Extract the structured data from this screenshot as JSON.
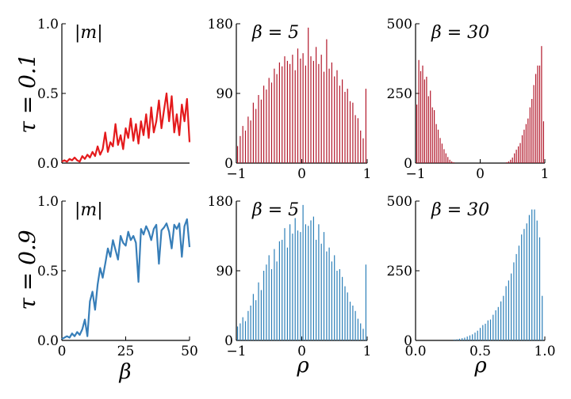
{
  "row_labels": [
    "τ = 0.1",
    "τ = 0.9"
  ],
  "x_labels": [
    "β",
    "ρ",
    "ρ"
  ],
  "chart_data": [
    {
      "id": "p00",
      "type": "line",
      "row": 0,
      "col": 0,
      "annotation": "|m|",
      "color": "#e41a1c",
      "xlim": [
        0,
        50
      ],
      "ylim": [
        0,
        1.0
      ],
      "xticks": [],
      "yticks": [
        0,
        0.5,
        1.0
      ],
      "ytick_labels": [
        "0.0",
        "0.5",
        "1.0"
      ],
      "x": [
        0,
        1,
        2,
        3,
        4,
        5,
        6,
        7,
        8,
        9,
        10,
        11,
        12,
        13,
        14,
        15,
        16,
        17,
        18,
        19,
        20,
        21,
        22,
        23,
        24,
        25,
        26,
        27,
        28,
        29,
        30,
        31,
        32,
        33,
        34,
        35,
        36,
        37,
        38,
        39,
        40,
        41,
        42,
        43,
        44,
        45,
        46,
        47,
        48,
        49,
        50
      ],
      "y": [
        0.01,
        0.02,
        0.01,
        0.03,
        0.02,
        0.04,
        0.02,
        0.01,
        0.05,
        0.03,
        0.06,
        0.04,
        0.08,
        0.05,
        0.12,
        0.06,
        0.1,
        0.22,
        0.08,
        0.15,
        0.12,
        0.28,
        0.13,
        0.2,
        0.1,
        0.25,
        0.18,
        0.32,
        0.16,
        0.28,
        0.14,
        0.3,
        0.2,
        0.35,
        0.18,
        0.4,
        0.22,
        0.3,
        0.45,
        0.25,
        0.38,
        0.5,
        0.3,
        0.48,
        0.22,
        0.35,
        0.2,
        0.42,
        0.3,
        0.46,
        0.15
      ]
    },
    {
      "id": "p01",
      "type": "bar",
      "row": 0,
      "col": 1,
      "annotation": "β = 5",
      "color": "#b2182b",
      "xlim": [
        -1,
        1
      ],
      "ylim": [
        0,
        180
      ],
      "xticks": [
        -1,
        0,
        1
      ],
      "xtick_labels": [
        "−1",
        "0",
        "1"
      ],
      "yticks": [
        0,
        90,
        180
      ],
      "ytick_labels": [
        "0",
        "90",
        "180"
      ],
      "x": [
        -0.98,
        -0.94,
        -0.9,
        -0.86,
        -0.82,
        -0.78,
        -0.74,
        -0.7,
        -0.66,
        -0.62,
        -0.58,
        -0.54,
        -0.5,
        -0.46,
        -0.42,
        -0.38,
        -0.34,
        -0.3,
        -0.26,
        -0.22,
        -0.18,
        -0.14,
        -0.1,
        -0.06,
        -0.02,
        0.02,
        0.06,
        0.1,
        0.14,
        0.18,
        0.22,
        0.26,
        0.3,
        0.34,
        0.38,
        0.42,
        0.46,
        0.5,
        0.54,
        0.58,
        0.62,
        0.66,
        0.7,
        0.74,
        0.78,
        0.82,
        0.86,
        0.9,
        0.94,
        0.98
      ],
      "y": [
        22,
        35,
        48,
        42,
        60,
        55,
        78,
        70,
        88,
        82,
        100,
        95,
        110,
        104,
        122,
        115,
        130,
        125,
        138,
        132,
        128,
        140,
        120,
        148,
        135,
        142,
        126,
        175,
        138,
        132,
        150,
        128,
        140,
        118,
        160,
        122,
        130,
        112,
        120,
        100,
        108,
        92,
        96,
        80,
        78,
        62,
        58,
        42,
        32,
        96
      ]
    },
    {
      "id": "p02",
      "type": "bar",
      "row": 0,
      "col": 2,
      "annotation": "β = 30",
      "color": "#b2182b",
      "xlim": [
        -1,
        1
      ],
      "ylim": [
        0,
        500
      ],
      "xticks": [
        -1,
        0,
        1
      ],
      "xtick_labels": [
        "−1",
        "0",
        "1"
      ],
      "yticks": [
        0,
        250,
        500
      ],
      "ytick_labels": [
        "0",
        "250",
        "500"
      ],
      "x": [
        -0.98,
        -0.95,
        -0.92,
        -0.89,
        -0.86,
        -0.83,
        -0.8,
        -0.77,
        -0.74,
        -0.71,
        -0.68,
        -0.65,
        -0.62,
        -0.59,
        -0.56,
        -0.53,
        -0.5,
        -0.47,
        -0.44,
        -0.41,
        0.41,
        0.44,
        0.47,
        0.5,
        0.53,
        0.56,
        0.59,
        0.62,
        0.65,
        0.68,
        0.71,
        0.74,
        0.77,
        0.8,
        0.83,
        0.86,
        0.89,
        0.92,
        0.95,
        0.98
      ],
      "y": [
        210,
        370,
        330,
        350,
        300,
        310,
        240,
        260,
        200,
        190,
        140,
        120,
        90,
        70,
        50,
        35,
        22,
        12,
        6,
        3,
        3,
        6,
        12,
        20,
        35,
        48,
        60,
        72,
        100,
        120,
        140,
        160,
        200,
        230,
        280,
        320,
        350,
        350,
        420,
        150
      ]
    },
    {
      "id": "p10",
      "type": "line",
      "row": 1,
      "col": 0,
      "annotation": "|m|",
      "color": "#377eb8",
      "xlim": [
        0,
        50
      ],
      "ylim": [
        0,
        1.0
      ],
      "xticks": [
        0,
        25,
        50
      ],
      "xtick_labels": [
        "0",
        "25",
        "50"
      ],
      "yticks": [
        0,
        0.5,
        1.0
      ],
      "ytick_labels": [
        "0.0",
        "0.5",
        "1.0"
      ],
      "x": [
        0,
        1,
        2,
        3,
        4,
        5,
        6,
        7,
        8,
        9,
        10,
        11,
        12,
        13,
        14,
        15,
        16,
        17,
        18,
        19,
        20,
        21,
        22,
        23,
        24,
        25,
        26,
        27,
        28,
        29,
        30,
        31,
        32,
        33,
        34,
        35,
        36,
        37,
        38,
        39,
        40,
        41,
        42,
        43,
        44,
        45,
        46,
        47,
        48,
        49,
        50
      ],
      "y": [
        0.01,
        0.02,
        0.03,
        0.02,
        0.05,
        0.03,
        0.06,
        0.04,
        0.08,
        0.15,
        0.03,
        0.28,
        0.35,
        0.22,
        0.4,
        0.52,
        0.45,
        0.55,
        0.66,
        0.6,
        0.72,
        0.65,
        0.58,
        0.75,
        0.7,
        0.68,
        0.78,
        0.72,
        0.75,
        0.7,
        0.42,
        0.8,
        0.76,
        0.82,
        0.78,
        0.72,
        0.8,
        0.83,
        0.55,
        0.79,
        0.81,
        0.84,
        0.78,
        0.66,
        0.83,
        0.8,
        0.84,
        0.6,
        0.82,
        0.87,
        0.67
      ]
    },
    {
      "id": "p11",
      "type": "bar",
      "row": 1,
      "col": 1,
      "annotation": "β = 5",
      "color": "#2c7fb8",
      "xlim": [
        -1,
        1
      ],
      "ylim": [
        0,
        180
      ],
      "xticks": [
        -1,
        0,
        1
      ],
      "xtick_labels": [
        "−1",
        "0",
        "1"
      ],
      "yticks": [
        0,
        90,
        180
      ],
      "ytick_labels": [
        "0",
        "90",
        "180"
      ],
      "x": [
        -0.98,
        -0.94,
        -0.9,
        -0.86,
        -0.82,
        -0.78,
        -0.74,
        -0.7,
        -0.66,
        -0.62,
        -0.58,
        -0.54,
        -0.5,
        -0.46,
        -0.42,
        -0.38,
        -0.34,
        -0.3,
        -0.26,
        -0.22,
        -0.18,
        -0.14,
        -0.1,
        -0.06,
        -0.02,
        0.02,
        0.06,
        0.1,
        0.14,
        0.18,
        0.22,
        0.26,
        0.3,
        0.34,
        0.38,
        0.42,
        0.46,
        0.5,
        0.54,
        0.58,
        0.62,
        0.66,
        0.7,
        0.74,
        0.78,
        0.82,
        0.86,
        0.9,
        0.94,
        0.98
      ],
      "y": [
        18,
        22,
        30,
        25,
        38,
        45,
        60,
        52,
        75,
        65,
        90,
        98,
        110,
        92,
        118,
        102,
        128,
        130,
        145,
        120,
        150,
        138,
        158,
        142,
        140,
        175,
        150,
        148,
        155,
        160,
        130,
        150,
        125,
        140,
        115,
        120,
        102,
        110,
        90,
        92,
        82,
        70,
        62,
        50,
        45,
        38,
        28,
        22,
        15,
        98
      ]
    },
    {
      "id": "p12",
      "type": "bar",
      "row": 1,
      "col": 2,
      "annotation": "β = 30",
      "color": "#2c7fb8",
      "xlim": [
        0,
        1.0
      ],
      "ylim": [
        0,
        500
      ],
      "xticks": [
        0,
        0.5,
        1.0
      ],
      "xtick_labels": [
        "0.0",
        "0.5",
        "1.0"
      ],
      "yticks": [
        0,
        250,
        500
      ],
      "ytick_labels": [
        "0",
        "250",
        "500"
      ],
      "x": [
        0.3,
        0.32,
        0.34,
        0.36,
        0.38,
        0.4,
        0.42,
        0.44,
        0.46,
        0.48,
        0.5,
        0.52,
        0.54,
        0.56,
        0.58,
        0.6,
        0.62,
        0.64,
        0.66,
        0.68,
        0.7,
        0.72,
        0.74,
        0.76,
        0.78,
        0.8,
        0.82,
        0.84,
        0.86,
        0.88,
        0.9,
        0.92,
        0.94,
        0.96,
        0.98
      ],
      "y": [
        3,
        4,
        6,
        8,
        10,
        14,
        18,
        22,
        28,
        35,
        45,
        55,
        60,
        72,
        75,
        92,
        108,
        120,
        140,
        160,
        195,
        215,
        240,
        280,
        310,
        340,
        380,
        400,
        420,
        450,
        470,
        470,
        430,
        370,
        160
      ]
    }
  ]
}
